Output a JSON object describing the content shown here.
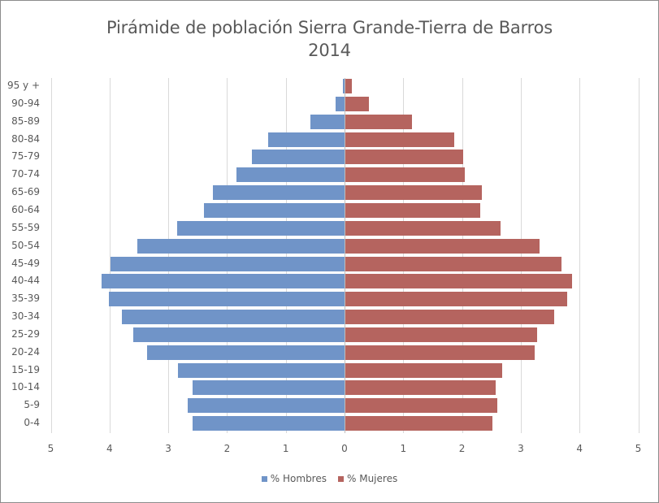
{
  "chart_data": {
    "type": "bar",
    "orientation": "horizontal",
    "subtype": "population-pyramid",
    "title": "Pirámide de población Sierra Grande-Tierra de Barros",
    "subtitle": "2014",
    "xlabel": "",
    "ylabel": "",
    "xlim": [
      -5,
      5
    ],
    "x_ticks": [
      "5",
      "4",
      "3",
      "2",
      "1",
      "0",
      "1",
      "2",
      "3",
      "4",
      "5"
    ],
    "grid": true,
    "legend_position": "bottom",
    "categories": [
      "95 y +",
      "90-94",
      "85-89",
      "80-84",
      "75-79",
      "70-74",
      "65-69",
      "60-64",
      "55-59",
      "50-54",
      "45-49",
      "40-44",
      "35-39",
      "30-34",
      "25-29",
      "20-24",
      "15-19",
      "10-14",
      "5-9",
      "0-4"
    ],
    "series": [
      {
        "name": "% Hombres",
        "color": "#7094c8",
        "side": "left",
        "values": [
          0.03,
          0.15,
          0.58,
          1.3,
          1.58,
          1.84,
          2.24,
          2.39,
          2.85,
          3.53,
          3.98,
          4.14,
          4.01,
          3.79,
          3.6,
          3.36,
          2.84,
          2.59,
          2.67,
          2.59
        ]
      },
      {
        "name": "% Mujeres",
        "color": "#b5645f",
        "side": "right",
        "values": [
          0.11,
          0.4,
          1.14,
          1.86,
          2.0,
          2.03,
          2.33,
          2.29,
          2.64,
          3.31,
          3.68,
          3.86,
          3.78,
          3.56,
          3.27,
          3.22,
          2.67,
          2.56,
          2.59,
          2.51
        ]
      }
    ]
  },
  "legend": {
    "items": [
      {
        "label": "% Hombres",
        "color": "#7094c8"
      },
      {
        "label": "% Mujeres",
        "color": "#b5645f"
      }
    ]
  }
}
